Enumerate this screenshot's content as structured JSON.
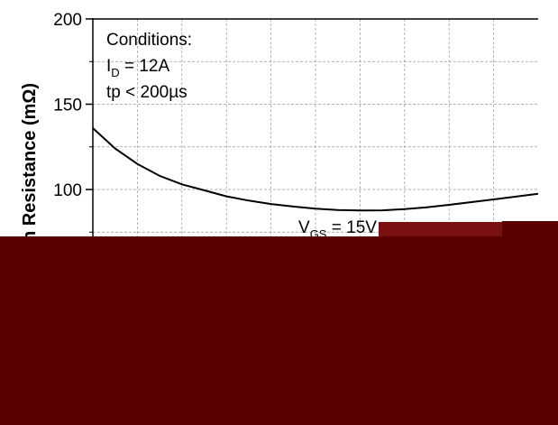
{
  "chart_data": {
    "type": "line",
    "ylabel": "n Resistance (mΩ)",
    "yticks": [
      "100",
      "150",
      "200"
    ],
    "ylim": [
      0,
      200
    ],
    "grid": true,
    "conditions": {
      "title": "Conditions:",
      "id_main": "I",
      "id_sub": "D",
      "id_value": " = 12A",
      "tp": "tp < 200µs"
    },
    "series_label": {
      "main": "V",
      "sub": "GS",
      "value": " = 15V"
    },
    "series": [
      {
        "x": [
          0,
          0.5,
          1,
          1.5,
          2,
          2.5,
          3,
          3.5,
          4,
          4.5,
          5,
          5.5,
          6,
          6.5,
          7,
          7.5,
          8,
          8.5,
          9,
          9.5,
          10
        ],
        "values": [
          136,
          124,
          115,
          108,
          103,
          99.5,
          96,
          93.5,
          91.5,
          90,
          88.8,
          88,
          87.7,
          87.8,
          88.5,
          89.5,
          91,
          92.6,
          94.2,
          95.8,
          97.5
        ]
      }
    ],
    "colors": {
      "line": "#000000",
      "grid": "#999999",
      "overlay": "#5a0000"
    }
  }
}
